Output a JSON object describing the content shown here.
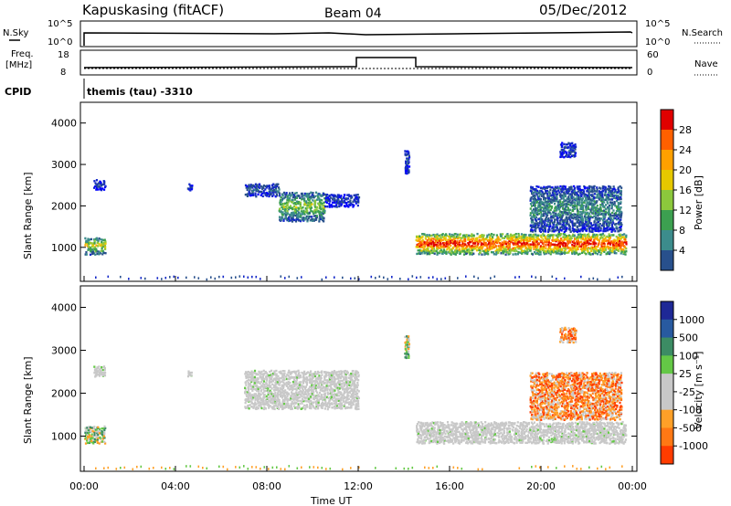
{
  "header": {
    "station": "Kapuskasing (fitACF)",
    "beam": "Beam 04",
    "date": "05/Dec/2012"
  },
  "top_panels": {
    "nsky_label": "N.Sky",
    "nsky_ticks": [
      "10^5",
      "10^0"
    ],
    "nsearch_label": "N.Search",
    "nsearch_ticks": [
      "10^5",
      "10^0"
    ],
    "freq_label": "Freq.",
    "freq_unit": "[MHz]",
    "freq_ticks": [
      "18",
      "8"
    ],
    "nave_label": "Nave",
    "nave_ticks": [
      "60",
      "0"
    ],
    "cpid_label": "CPID",
    "cpid_text": "themis (tau) -3310"
  },
  "colorbars": {
    "power": {
      "title": "Power [dB]",
      "ticks": [
        "28",
        "24",
        "20",
        "16",
        "12",
        "8",
        "4"
      ],
      "colors": [
        "#e00000",
        "#ff6000",
        "#ffa000",
        "#e6c800",
        "#8cc83c",
        "#3ca050",
        "#3c8c8c",
        "#28508c",
        "#1428c8",
        "#0000ff"
      ]
    },
    "velocity": {
      "title": "Velocity [m s⁻¹]",
      "ticks": [
        "1000",
        "500",
        "100",
        "25",
        "-25",
        "-100",
        "-500",
        "-1000"
      ],
      "colors": [
        "#1e2896",
        "#285aa0",
        "#3c8c64",
        "#64c846",
        "#c8c8c8",
        "#c8c8c8",
        "#ffa028",
        "#ff7814",
        "#ff3c00",
        "#e60000"
      ]
    }
  },
  "chart_data": [
    {
      "type": "heatmap",
      "panel": "power",
      "ylabel": "Slant Range [km]",
      "xlabel": "Time UT",
      "x_ticks": [
        "00:00",
        "04:00",
        "08:00",
        "12:00",
        "16:00",
        "20:00",
        "00:00"
      ],
      "y_ticks": [
        "1000",
        "2000",
        "3000",
        "4000"
      ],
      "xlim_hours": [
        0,
        24
      ],
      "ylim_km": [
        180,
        4500
      ],
      "regions": [
        {
          "t0": 0.0,
          "t1": 0.9,
          "r0": 850,
          "r1": 1250,
          "level": 0.55
        },
        {
          "t0": 0.4,
          "t1": 0.9,
          "r0": 2400,
          "r1": 2650,
          "level": 0.15
        },
        {
          "t0": 4.5,
          "t1": 4.7,
          "r0": 2400,
          "r1": 2550,
          "level": 0.15
        },
        {
          "t0": 7.0,
          "t1": 8.5,
          "r0": 2250,
          "r1": 2550,
          "level": 0.2
        },
        {
          "t0": 8.5,
          "t1": 10.5,
          "r0": 1650,
          "r1": 2350,
          "level": 0.45
        },
        {
          "t0": 10.5,
          "t1": 12.0,
          "r0": 2000,
          "r1": 2300,
          "level": 0.15
        },
        {
          "t0": 14.0,
          "t1": 14.2,
          "r0": 2800,
          "r1": 3350,
          "level": 0.15
        },
        {
          "t0": 14.5,
          "t1": 23.7,
          "r0": 850,
          "r1": 1350,
          "level": 0.85
        },
        {
          "t0": 19.5,
          "t1": 23.5,
          "r0": 1400,
          "r1": 2500,
          "level": 0.3
        },
        {
          "t0": 20.8,
          "t1": 21.5,
          "r0": 3200,
          "r1": 3550,
          "level": 0.15
        }
      ]
    },
    {
      "type": "heatmap",
      "panel": "velocity",
      "ylabel": "Slant Range [km]",
      "x_ticks": [
        "00:00",
        "04:00",
        "08:00",
        "12:00",
        "16:00",
        "20:00",
        "00:00"
      ],
      "y_ticks": [
        "1000",
        "2000",
        "3000",
        "4000"
      ],
      "xlim_hours": [
        0,
        24
      ],
      "ylim_km": [
        180,
        4500
      ],
      "regions": [
        {
          "t0": 0.0,
          "t1": 0.9,
          "r0": 850,
          "r1": 1250,
          "kind": "mixed"
        },
        {
          "t0": 0.4,
          "t1": 0.9,
          "r0": 2400,
          "r1": 2650,
          "kind": "ground"
        },
        {
          "t0": 4.5,
          "t1": 4.7,
          "r0": 2400,
          "r1": 2550,
          "kind": "ground"
        },
        {
          "t0": 7.0,
          "t1": 12.0,
          "r0": 1650,
          "r1": 2550,
          "kind": "ground"
        },
        {
          "t0": 14.0,
          "t1": 14.2,
          "r0": 2800,
          "r1": 3350,
          "kind": "mixed"
        },
        {
          "t0": 14.5,
          "t1": 23.7,
          "r0": 850,
          "r1": 1350,
          "kind": "ground"
        },
        {
          "t0": 19.5,
          "t1": 23.5,
          "r0": 1400,
          "r1": 2500,
          "kind": "negative"
        },
        {
          "t0": 20.8,
          "t1": 21.5,
          "r0": 3200,
          "r1": 3550,
          "kind": "negative"
        }
      ]
    }
  ]
}
